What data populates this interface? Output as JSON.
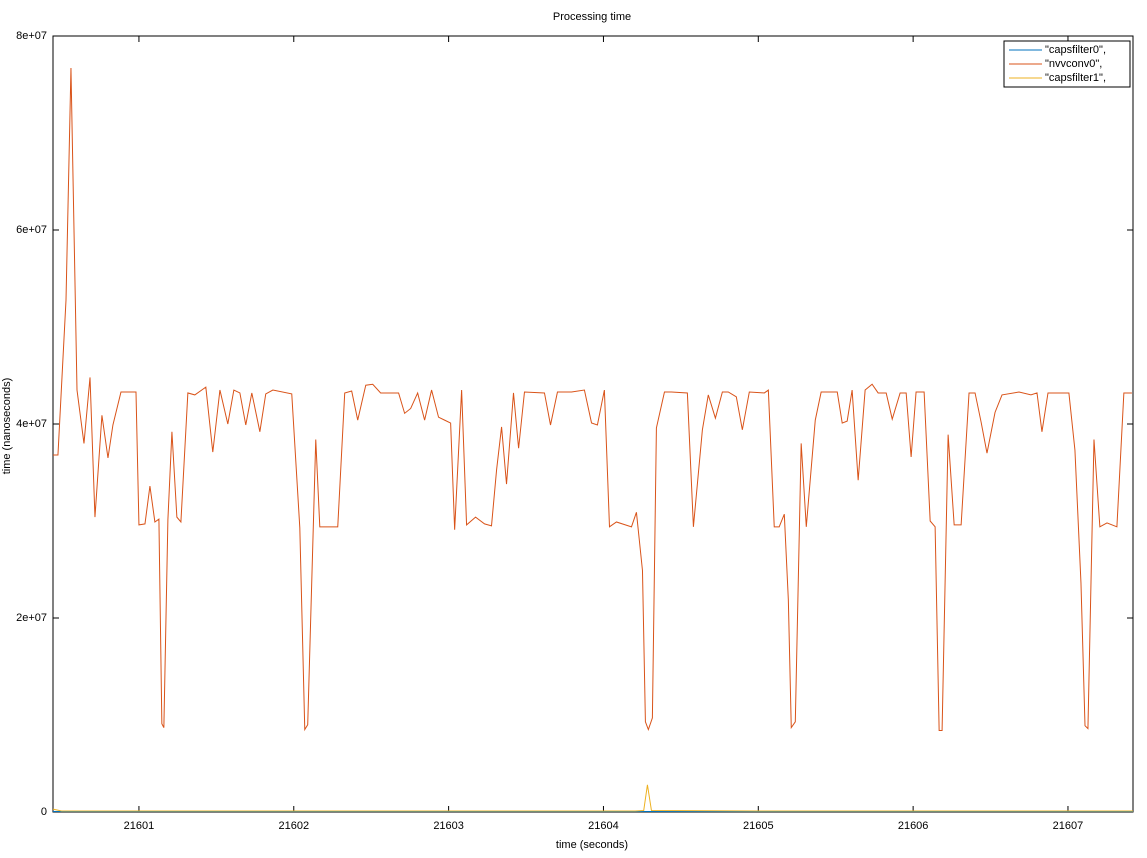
{
  "chart_data": {
    "type": "line",
    "title": "Processing time",
    "xlabel": "time (seconds)",
    "ylabel": "time (nanoseconds)",
    "xlim": [
      21600.445,
      21607.42
    ],
    "xticks": [
      21601,
      21602,
      21603,
      21604,
      21605,
      21606,
      21607
    ],
    "ylim": [
      0,
      80000000
    ],
    "yticks": [
      0,
      {
        "value": 20000000,
        "label": "2e+07"
      },
      {
        "value": 40000000,
        "label": "4e+07"
      },
      {
        "value": 60000000,
        "label": "6e+07"
      },
      {
        "value": 80000000,
        "label": "8e+07"
      }
    ],
    "grid": false,
    "legend": "upper right",
    "series": [
      {
        "name": "\"capsfilter0\",",
        "color": "#0072bd",
        "x": [
          21600.445,
          21607.42
        ],
        "values": [
          50000,
          50000
        ]
      },
      {
        "name": "\"nvvconv0\",",
        "color": "#d95319",
        "x": [
          21600.445,
          21600.477,
          21600.529,
          21600.561,
          21600.6,
          21600.645,
          21600.684,
          21600.716,
          21600.761,
          21600.8,
          21600.832,
          21600.884,
          21600.981,
          21601.0,
          21601.039,
          21601.071,
          21601.103,
          21601.129,
          21601.148,
          21601.161,
          21601.187,
          21601.213,
          21601.245,
          21601.271,
          21601.316,
          21601.361,
          21601.432,
          21601.477,
          21601.523,
          21601.574,
          21601.613,
          21601.652,
          21601.69,
          21601.729,
          21601.781,
          21601.819,
          21601.865,
          21601.987,
          21602.039,
          21602.071,
          21602.09,
          21602.142,
          21602.168,
          21602.284,
          21602.329,
          21602.374,
          21602.413,
          21602.465,
          21602.51,
          21602.561,
          21602.677,
          21602.716,
          21602.755,
          21602.8,
          21602.845,
          21602.89,
          21602.935,
          21602.974,
          21603.013,
          21603.039,
          21603.084,
          21603.116,
          21603.174,
          21603.232,
          21603.277,
          21603.31,
          21603.342,
          21603.374,
          21603.419,
          21603.452,
          21603.49,
          21603.619,
          21603.658,
          21603.703,
          21603.794,
          21603.877,
          21603.923,
          21603.961,
          21604.006,
          21604.039,
          21604.084,
          21604.181,
          21604.213,
          21604.252,
          21604.271,
          21604.29,
          21604.316,
          21604.342,
          21604.394,
          21604.439,
          21604.542,
          21604.581,
          21604.639,
          21604.677,
          21604.723,
          21604.768,
          21604.806,
          21604.858,
          21604.897,
          21604.942,
          21605.039,
          21605.065,
          21605.103,
          21605.135,
          21605.168,
          21605.194,
          21605.213,
          21605.239,
          21605.277,
          21605.31,
          21605.368,
          21605.406,
          21605.51,
          21605.542,
          21605.574,
          21605.606,
          21605.645,
          21605.69,
          21605.735,
          21605.774,
          21605.826,
          21605.865,
          21605.916,
          21605.955,
          21605.987,
          21606.019,
          21606.071,
          21606.11,
          21606.142,
          21606.168,
          21606.187,
          21606.226,
          21606.265,
          21606.31,
          21606.361,
          21606.4,
          21606.439,
          21606.477,
          21606.529,
          21606.574,
          21606.684,
          21606.761,
          21606.8,
          21606.832,
          21606.871,
          21607.006,
          21607.045,
          21607.084,
          21607.11,
          21607.129,
          21607.168,
          21607.206,
          21607.252,
          21607.316,
          21607.361,
          21607.413
        ],
        "values": [
          36800000,
          36800000,
          52800000,
          76700000,
          43500000,
          38000000,
          44800000,
          30400000,
          40900000,
          36500000,
          39900000,
          43300000,
          43300000,
          29600000,
          29700000,
          33600000,
          29900000,
          30200000,
          9100000,
          8700000,
          30100000,
          39200000,
          30400000,
          29900000,
          43200000,
          43000000,
          43800000,
          37100000,
          43500000,
          40000000,
          43500000,
          43200000,
          39900000,
          43200000,
          39200000,
          43100000,
          43500000,
          43100000,
          29300000,
          8500000,
          9000000,
          38400000,
          29400000,
          29400000,
          43200000,
          43400000,
          40400000,
          44000000,
          44100000,
          43200000,
          43200000,
          41100000,
          41600000,
          43200000,
          40400000,
          43500000,
          40700000,
          40400000,
          40100000,
          29100000,
          43500000,
          29600000,
          30400000,
          29700000,
          29500000,
          35300000,
          39700000,
          33800000,
          43200000,
          37500000,
          43300000,
          43200000,
          39900000,
          43300000,
          43300000,
          43500000,
          40100000,
          39900000,
          43500000,
          29400000,
          29900000,
          29400000,
          30900000,
          24900000,
          9300000,
          8500000,
          9700000,
          39600000,
          43300000,
          43300000,
          43200000,
          29400000,
          39400000,
          43000000,
          40600000,
          43300000,
          43300000,
          42800000,
          39400000,
          43300000,
          43200000,
          43500000,
          29400000,
          29400000,
          30700000,
          21900000,
          8700000,
          9300000,
          38000000,
          29400000,
          40400000,
          43300000,
          43300000,
          40100000,
          40300000,
          43500000,
          34200000,
          43500000,
          44100000,
          43200000,
          43200000,
          40500000,
          43200000,
          43200000,
          36600000,
          43300000,
          43300000,
          30000000,
          29400000,
          8400000,
          8400000,
          38900000,
          29600000,
          29600000,
          43200000,
          43200000,
          40200000,
          37000000,
          41200000,
          43000000,
          43300000,
          43000000,
          43200000,
          39200000,
          43200000,
          43200000,
          37300000,
          23600000,
          8900000,
          8600000,
          38400000,
          29400000,
          29800000,
          29400000,
          43200000,
          43200000
        ]
      },
      {
        "name": "\"capsfilter1\",",
        "color": "#edb120",
        "x": [
          21600.445,
          21600.5,
          21601.2,
          21602.2,
          21603.0,
          21604.2,
          21604.26,
          21604.284,
          21604.31,
          21605.0,
          21606.0,
          21607.0,
          21607.42
        ],
        "values": [
          300000,
          100000,
          100000,
          100000,
          100000,
          100000,
          150000,
          2800000,
          150000,
          100000,
          100000,
          100000,
          100000
        ]
      }
    ]
  }
}
